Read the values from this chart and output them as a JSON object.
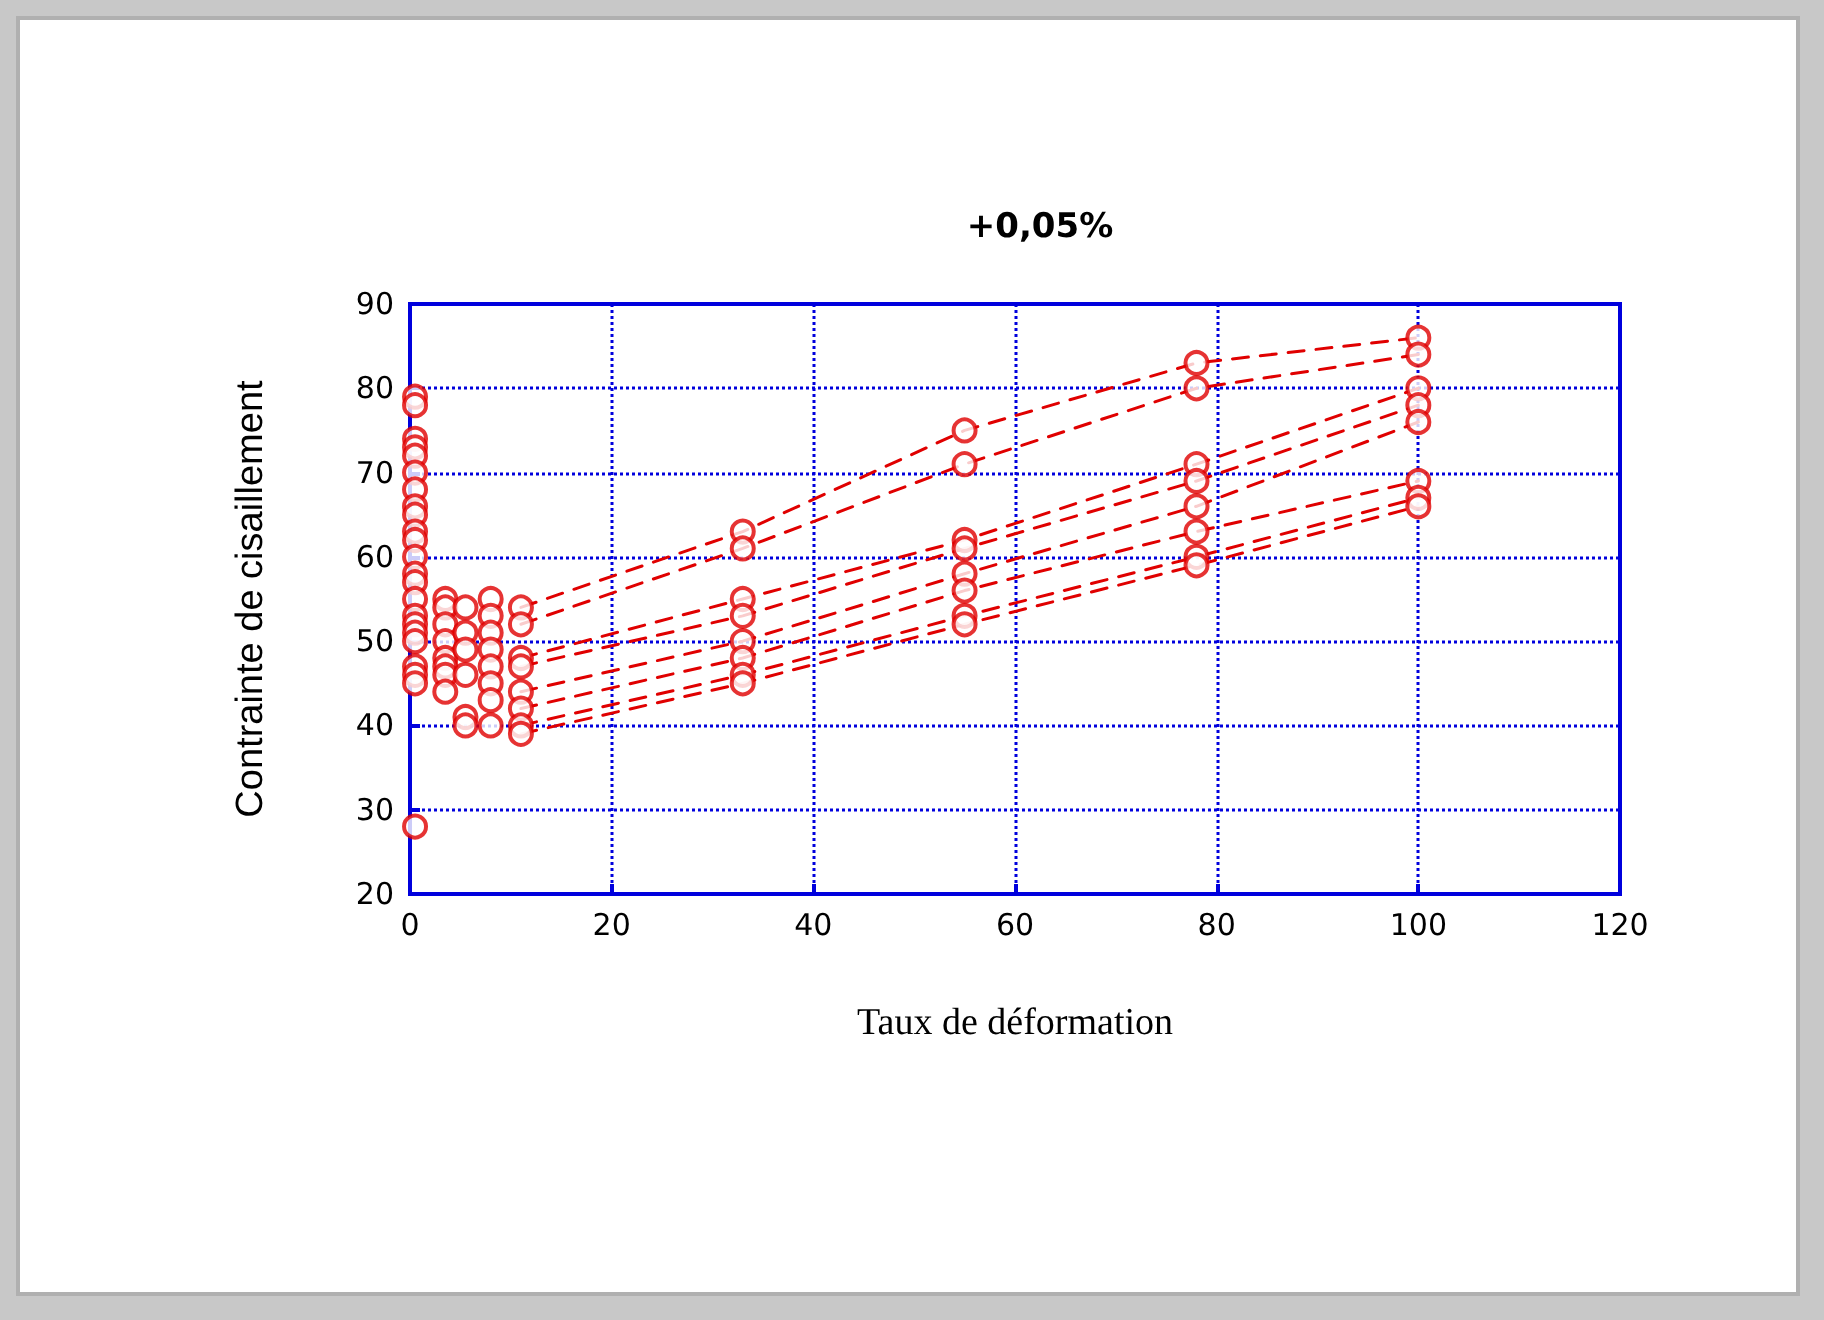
{
  "chart_data": {
    "type": "scatter",
    "title": "+0,05%",
    "xlabel": "Taux de déformation",
    "ylabel": "Contrainte de cisaillement",
    "xlim": [
      0,
      120
    ],
    "xticks": [
      0,
      20,
      40,
      60,
      80,
      100,
      120
    ],
    "ylim": [
      20,
      90
    ],
    "yticks": [
      20,
      30,
      40,
      50,
      60,
      70,
      80,
      90
    ],
    "grid": true,
    "series": [
      {
        "marker": "circle",
        "color": "#e00000",
        "x": [
          0.5,
          0.5,
          0.5,
          0.5,
          0.5,
          0.5,
          0.5,
          0.5,
          0.5,
          0.5,
          0.5,
          0.5,
          0.5,
          0.5,
          0.5,
          0.5,
          0.5,
          0.5,
          0.5,
          0.5,
          0.5,
          0.5,
          0.5,
          3.5,
          3.5,
          3.5,
          3.5,
          3.5,
          3.5,
          3.5,
          3.5,
          5.5,
          5.5,
          5.5,
          5.5,
          5.5,
          5.5,
          8,
          8,
          8,
          8,
          8,
          8,
          8,
          8,
          11,
          11,
          11,
          11,
          11,
          11,
          11,
          11,
          33,
          33,
          33,
          33,
          33,
          33,
          33,
          33,
          55,
          55,
          55,
          55,
          55,
          55,
          55,
          55,
          78,
          78,
          78,
          78,
          78,
          78,
          78,
          78,
          100,
          100,
          100,
          100,
          100,
          100,
          100,
          100
        ],
        "values": [
          79,
          78,
          74,
          73,
          72,
          70,
          68,
          66,
          65,
          63,
          62,
          60,
          58,
          57,
          55,
          53,
          52,
          51,
          50,
          47,
          46,
          45,
          28,
          55,
          54,
          52,
          50,
          48,
          47,
          46,
          44,
          54,
          51,
          49,
          46,
          41,
          40,
          55,
          53,
          51,
          49,
          47,
          45,
          43,
          40,
          54,
          52,
          48,
          47,
          44,
          42,
          40,
          39,
          63,
          61,
          55,
          53,
          50,
          48,
          46,
          45,
          75,
          71,
          62,
          61,
          58,
          56,
          53,
          52,
          83,
          80,
          71,
          69,
          66,
          63,
          60,
          59,
          86,
          84,
          80,
          78,
          76,
          69,
          67,
          66
        ]
      },
      {
        "type": "line",
        "marker": "none",
        "line_style": "dashed",
        "color": "#e00000",
        "x": [
          11,
          33,
          55,
          78,
          100
        ],
        "values": [
          54,
          63,
          75,
          83,
          86
        ]
      },
      {
        "type": "line",
        "marker": "none",
        "line_style": "dashed",
        "color": "#e00000",
        "x": [
          11,
          33,
          55,
          78,
          100
        ],
        "values": [
          52,
          61,
          71,
          80,
          84
        ]
      },
      {
        "type": "line",
        "marker": "none",
        "line_style": "dashed",
        "color": "#e00000",
        "x": [
          11,
          33,
          55,
          78,
          100
        ],
        "values": [
          48,
          55,
          62,
          71,
          80
        ]
      },
      {
        "type": "line",
        "marker": "none",
        "line_style": "dashed",
        "color": "#e00000",
        "x": [
          11,
          33,
          55,
          78,
          100
        ],
        "values": [
          47,
          53,
          61,
          69,
          78
        ]
      },
      {
        "type": "line",
        "marker": "none",
        "line_style": "dashed",
        "color": "#e00000",
        "x": [
          11,
          33,
          55,
          78,
          100
        ],
        "values": [
          44,
          50,
          58,
          66,
          76
        ]
      },
      {
        "type": "line",
        "marker": "none",
        "line_style": "dashed",
        "color": "#e00000",
        "x": [
          11,
          33,
          55,
          78,
          100
        ],
        "values": [
          42,
          48,
          56,
          63,
          69
        ]
      },
      {
        "type": "line",
        "marker": "none",
        "line_style": "dashed",
        "color": "#e00000",
        "x": [
          11,
          33,
          55,
          78,
          100
        ],
        "values": [
          40,
          46,
          53,
          60,
          67
        ]
      },
      {
        "type": "line",
        "marker": "none",
        "line_style": "dashed",
        "color": "#e00000",
        "x": [
          11,
          33,
          55,
          78,
          100
        ],
        "values": [
          39,
          45,
          52,
          59,
          66
        ]
      }
    ]
  }
}
